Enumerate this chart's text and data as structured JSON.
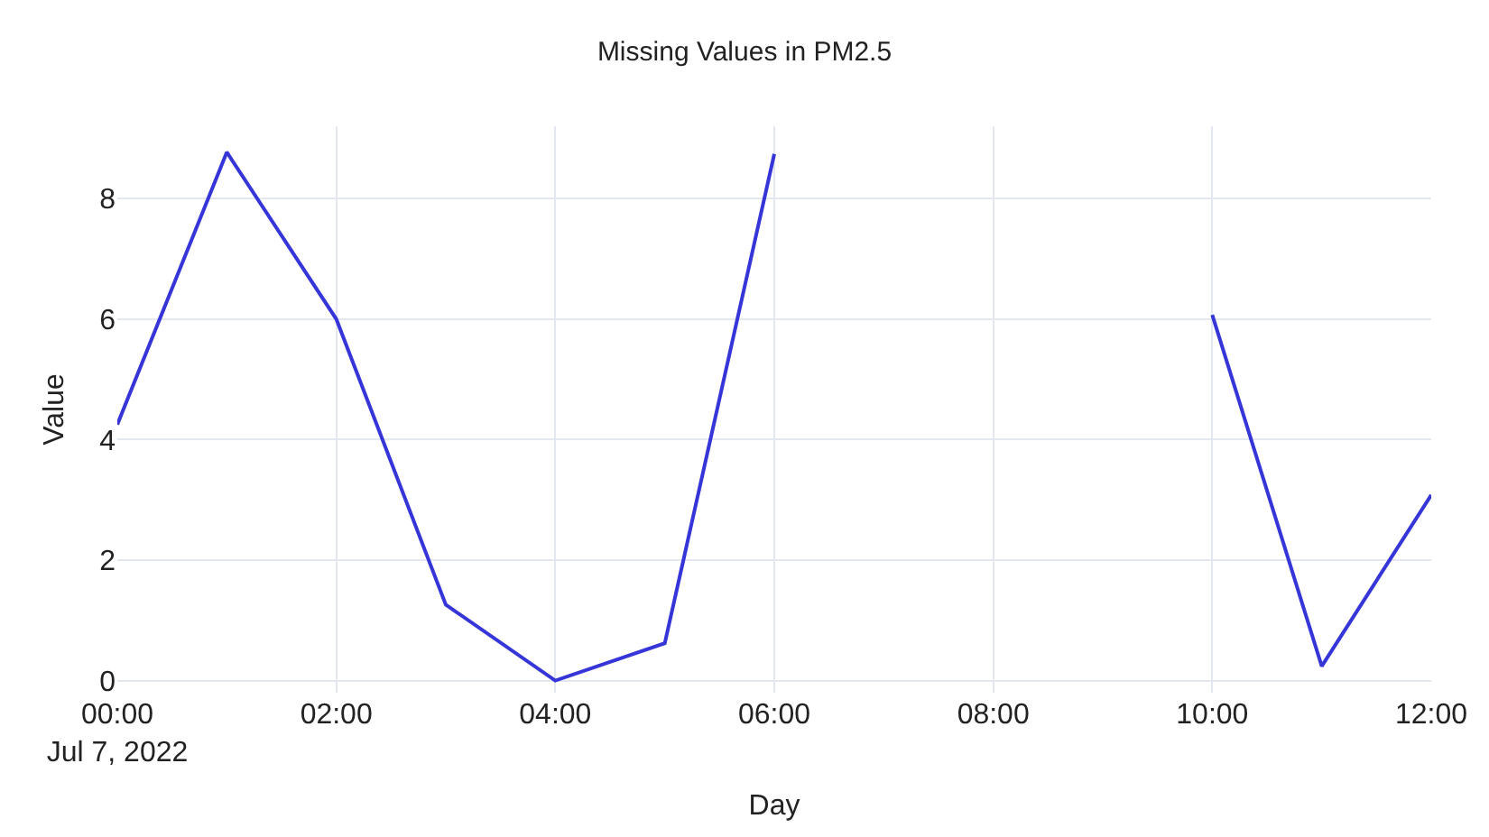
{
  "chart_data": {
    "type": "line",
    "title": "Missing Values in PM2.5",
    "xlabel": "Day",
    "ylabel": "Value",
    "x": [
      "2022-07-07T00:00",
      "2022-07-07T01:00",
      "2022-07-07T02:00",
      "2022-07-07T03:00",
      "2022-07-07T04:00",
      "2022-07-07T05:00",
      "2022-07-07T06:00",
      "2022-07-07T07:00",
      "2022-07-07T08:00",
      "2022-07-07T09:00",
      "2022-07-07T10:00",
      "2022-07-07T11:00",
      "2022-07-07T12:00"
    ],
    "series": [
      {
        "color": "#3535d8",
        "values": [
          4.25,
          8.77,
          6.0,
          1.26,
          0.0,
          0.62,
          8.74,
          null,
          null,
          null,
          6.07,
          0.24,
          3.08
        ]
      }
    ],
    "xlim": [
      "2022-07-07T00:00",
      "2022-07-07T12:00"
    ],
    "xticks": [
      {
        "value": "2022-07-07T00:00",
        "label": "00:00\nJul 7, 2022"
      },
      {
        "value": "2022-07-07T02:00",
        "label": "02:00"
      },
      {
        "value": "2022-07-07T04:00",
        "label": "04:00"
      },
      {
        "value": "2022-07-07T06:00",
        "label": "06:00"
      },
      {
        "value": "2022-07-07T08:00",
        "label": "08:00"
      },
      {
        "value": "2022-07-07T10:00",
        "label": "10:00"
      },
      {
        "value": "2022-07-07T12:00",
        "label": "12:00"
      }
    ],
    "ylim": [
      -0.2,
      9.2
    ],
    "yticks": [
      0,
      2,
      4,
      6,
      8
    ],
    "grid": true,
    "marker": "none",
    "line_style": "solid"
  }
}
